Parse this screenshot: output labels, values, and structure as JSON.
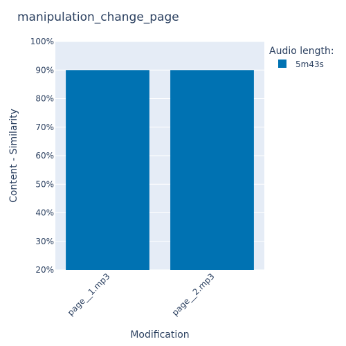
{
  "chart_data": {
    "type": "bar",
    "title": "manipulation_change_page",
    "xlabel": "Modification",
    "ylabel": "Content - Similarity",
    "categories": [
      "page__1.mp3",
      "page__2.mp3"
    ],
    "series": [
      {
        "name": "5m43s",
        "values": [
          0.9,
          0.9
        ]
      }
    ],
    "ylim": [
      0.2,
      1.0
    ],
    "yticks": [
      0.2,
      0.3,
      0.4,
      0.5,
      0.6,
      0.7,
      0.8,
      0.9,
      1.0
    ],
    "ytick_labels": [
      "20%",
      "30%",
      "40%",
      "50%",
      "60%",
      "70%",
      "80%",
      "90%",
      "100%"
    ],
    "legend_title": "Audio length:",
    "legend_position": "top-right",
    "grid": true,
    "colors": {
      "plot_bg": "#e5ecf6",
      "bar": "#0072b2",
      "text": "#2a3f5f",
      "grid": "#ffffff"
    }
  }
}
